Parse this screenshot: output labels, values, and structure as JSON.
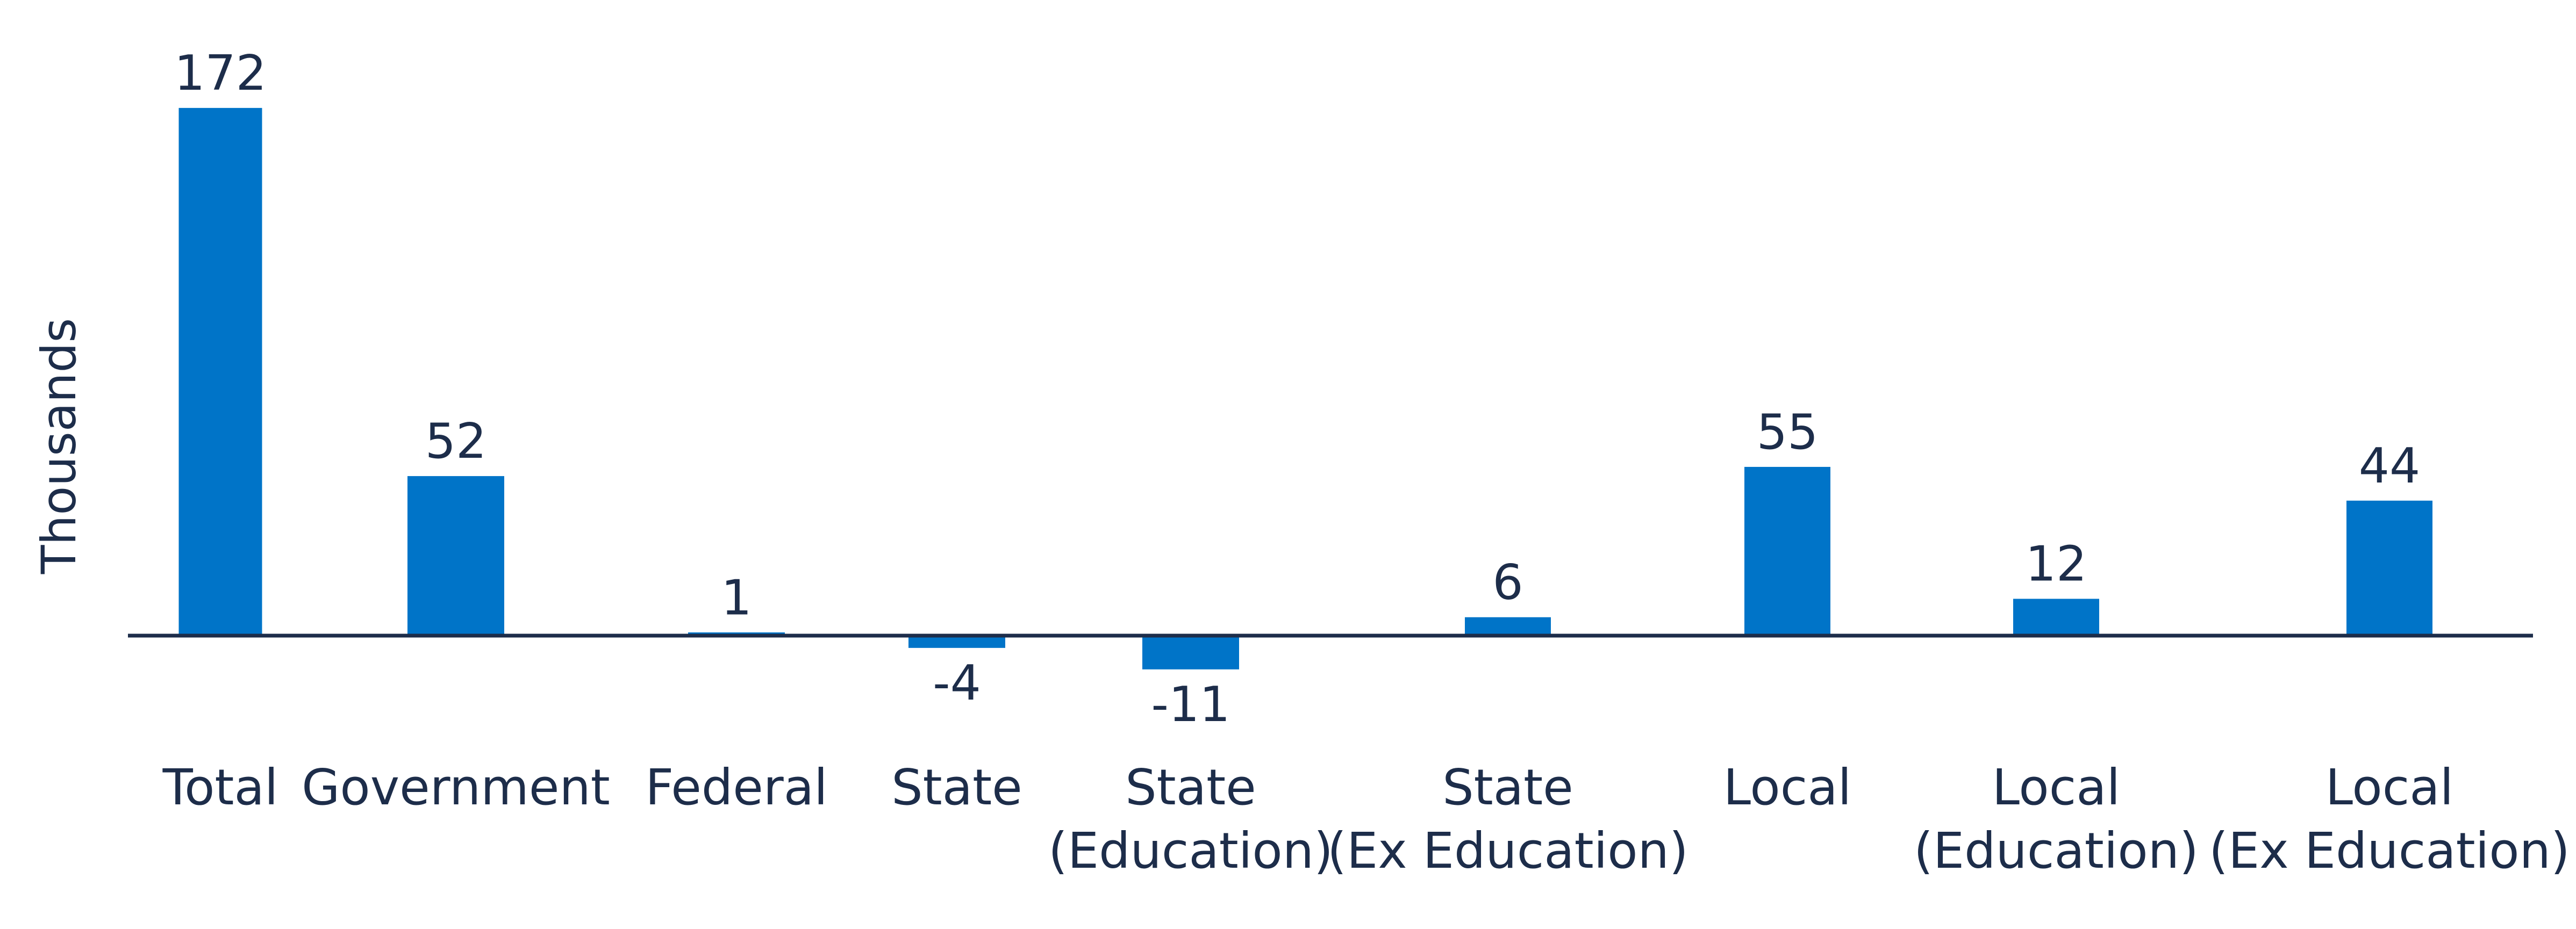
{
  "chart_data": {
    "type": "bar",
    "title": "",
    "xlabel": "",
    "ylabel": "Thousands",
    "categories": [
      [
        "Total"
      ],
      [
        "Government"
      ],
      [
        "Federal"
      ],
      [
        "State"
      ],
      [
        "State",
        "(Education)"
      ],
      [
        "State",
        "(Ex Education)"
      ],
      [
        "Local"
      ],
      [
        "Local",
        "(Education)"
      ],
      [
        "Local",
        "(Ex Education)"
      ]
    ],
    "values": [
      172,
      52,
      1,
      -4,
      -11,
      6,
      55,
      12,
      44
    ],
    "value_labels": [
      "172",
      "52",
      "1",
      "-4",
      "-11",
      "6",
      "55",
      "12",
      "44"
    ],
    "ylim": [
      -15,
      180
    ],
    "grid": false,
    "legend": "none",
    "bar_color": "#0074c8",
    "axis_color": "#1d2d4a",
    "text_color": "#1d2d4a"
  }
}
